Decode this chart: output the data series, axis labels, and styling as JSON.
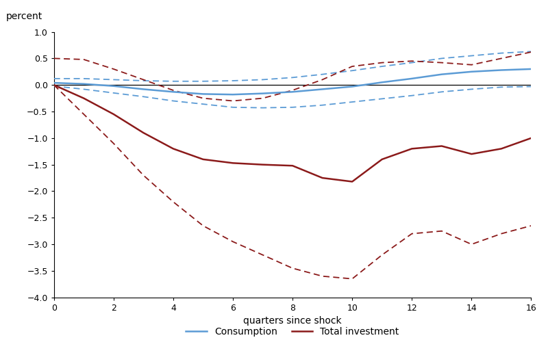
{
  "quarters": [
    0,
    1,
    2,
    3,
    4,
    5,
    6,
    7,
    8,
    9,
    10,
    11,
    12,
    13,
    14,
    15,
    16
  ],
  "consumption_center": [
    0.04,
    0.02,
    -0.02,
    -0.08,
    -0.13,
    -0.17,
    -0.18,
    -0.16,
    -0.13,
    -0.08,
    -0.03,
    0.05,
    0.12,
    0.2,
    0.25,
    0.28,
    0.3
  ],
  "consumption_upper": [
    0.12,
    0.12,
    0.1,
    0.08,
    0.07,
    0.07,
    0.08,
    0.1,
    0.14,
    0.2,
    0.27,
    0.35,
    0.42,
    0.5,
    0.55,
    0.6,
    0.63
  ],
  "consumption_lower": [
    -0.02,
    -0.08,
    -0.15,
    -0.22,
    -0.3,
    -0.36,
    -0.42,
    -0.43,
    -0.42,
    -0.38,
    -0.32,
    -0.26,
    -0.2,
    -0.13,
    -0.08,
    -0.04,
    -0.03
  ],
  "investment_center": [
    0.0,
    -0.25,
    -0.55,
    -0.9,
    -1.2,
    -1.4,
    -1.47,
    -1.5,
    -1.52,
    -1.75,
    -1.82,
    -1.4,
    -1.2,
    -1.15,
    -1.3,
    -1.2,
    -1.0
  ],
  "investment_upper": [
    0.5,
    0.48,
    0.3,
    0.1,
    -0.1,
    -0.25,
    -0.3,
    -0.25,
    -0.1,
    0.1,
    0.35,
    0.42,
    0.45,
    0.42,
    0.38,
    0.5,
    0.62
  ],
  "investment_lower": [
    0.0,
    -0.55,
    -1.1,
    -1.7,
    -2.2,
    -2.65,
    -2.95,
    -3.2,
    -3.45,
    -3.6,
    -3.65,
    -3.2,
    -2.8,
    -2.75,
    -3.0,
    -2.8,
    -2.65
  ],
  "ylim": [
    -4.0,
    1.0
  ],
  "yticks": [
    -4.0,
    -3.5,
    -3.0,
    -2.5,
    -2.0,
    -1.5,
    -1.0,
    -0.5,
    0.0,
    0.5,
    1.0
  ],
  "xticks": [
    0,
    2,
    4,
    6,
    8,
    10,
    12,
    14,
    16
  ],
  "xlabel": "quarters since shock",
  "ylabel": "percent",
  "consumption_color": "#5b9bd5",
  "investment_color": "#8b1a1a",
  "background_color": "#ffffff",
  "legend_consumption": "Consumption",
  "legend_investment": "Total investment"
}
